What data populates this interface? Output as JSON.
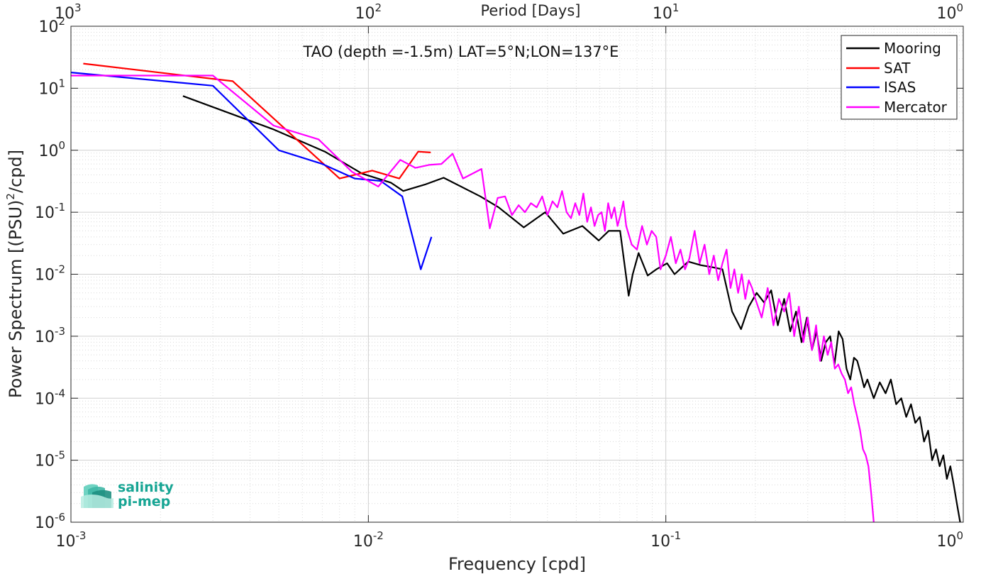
{
  "chart_data": {
    "type": "line",
    "annotation": "TAO (depth =-1.5m) LAT=5°N;LON=137°E",
    "xlabel": "Frequency [cpd]",
    "ylabel": "Power Spectrum [(PSU)",
    "ylabel_sup": "2",
    "ylabel_tail": "/cpd]",
    "top_axis_label": "Period [Days]",
    "x_scale": "log",
    "y_scale": "log",
    "xlim": [
      0.001,
      1
    ],
    "ylim": [
      1e-06,
      100
    ],
    "grid": true,
    "legend_position": "top-right",
    "x_ticks": [
      "10",
      "10",
      "10",
      "10"
    ],
    "x_tick_exponents": [
      "-3",
      "-2",
      "-1",
      "0"
    ],
    "y_ticks": [
      "10",
      "10",
      "10",
      "10",
      "10",
      "10",
      "10",
      "10",
      "10"
    ],
    "y_tick_exponents": [
      "2",
      "1",
      "0",
      "-1",
      "-2",
      "-3",
      "-4",
      "-5",
      "-6"
    ],
    "top_ticks": [
      "10",
      "10",
      "10",
      "10"
    ],
    "top_tick_exponents": [
      "3",
      "2",
      "1",
      "0"
    ],
    "series": [
      {
        "name": "Mooring",
        "color": "#000000",
        "x": [
          0.00238,
          0.00476,
          0.00714,
          0.00952,
          0.0119,
          0.0131,
          0.0155,
          0.0179,
          0.0238,
          0.0274,
          0.0333,
          0.0393,
          0.0452,
          0.0524,
          0.0595,
          0.0643,
          0.0702,
          0.075,
          0.0774,
          0.081,
          0.0869,
          0.0929,
          0.101,
          0.107,
          0.119,
          0.131,
          0.143,
          0.155,
          0.167,
          0.179,
          0.19,
          0.202,
          0.214,
          0.226,
          0.238,
          0.25,
          0.262,
          0.274,
          0.286,
          0.298,
          0.31,
          0.321,
          0.333,
          0.345,
          0.357,
          0.369,
          0.381,
          0.393,
          0.405,
          0.417,
          0.429,
          0.44,
          0.452,
          0.464,
          0.476,
          0.5,
          0.524,
          0.548,
          0.571,
          0.595,
          0.619,
          0.643,
          0.667,
          0.69,
          0.714,
          0.738,
          0.762,
          0.786,
          0.81,
          0.833,
          0.857,
          0.881,
          0.905,
          0.929,
          0.952,
          0.976
        ],
        "y": [
          7.5,
          2.2,
          0.95,
          0.42,
          0.3,
          0.22,
          0.28,
          0.36,
          0.18,
          0.12,
          0.057,
          0.1,
          0.045,
          0.06,
          0.035,
          0.05,
          0.05,
          0.0045,
          0.01,
          0.022,
          0.0095,
          0.012,
          0.015,
          0.01,
          0.016,
          0.014,
          0.013,
          0.012,
          0.0025,
          0.0013,
          0.003,
          0.005,
          0.0035,
          0.0055,
          0.0015,
          0.004,
          0.0012,
          0.0025,
          0.0008,
          0.002,
          0.0006,
          0.0012,
          0.0004,
          0.0008,
          0.001,
          0.00035,
          0.0012,
          0.0009,
          0.0003,
          0.0002,
          0.00045,
          0.0004,
          0.00025,
          0.00015,
          0.0002,
          0.0001,
          0.00018,
          0.00012,
          0.0002,
          8e-05,
          0.0001,
          5e-05,
          8e-05,
          4e-05,
          5e-05,
          2e-05,
          3e-05,
          1e-05,
          1.5e-05,
          8e-06,
          1.2e-05,
          5e-06,
          8e-06,
          4e-06,
          2e-06,
          1e-06
        ]
      },
      {
        "name": "SAT",
        "color": "#ff0000",
        "x": [
          0.0011,
          0.0035,
          0.008,
          0.0103,
          0.0127,
          0.0147,
          0.0162
        ],
        "y": [
          25,
          13,
          0.35,
          0.47,
          0.35,
          0.95,
          0.92
        ]
      },
      {
        "name": "ISAS",
        "color": "#0000ff",
        "x": [
          0.001,
          0.003,
          0.005,
          0.007,
          0.009,
          0.011,
          0.013,
          0.015,
          0.0163
        ],
        "y": [
          18,
          11,
          1.0,
          0.6,
          0.35,
          0.32,
          0.18,
          0.012,
          0.04
        ]
      },
      {
        "name": "Mercator",
        "color": "#ff00ff",
        "x": [
          0.001,
          0.003,
          0.0048,
          0.0068,
          0.0088,
          0.0108,
          0.0128,
          0.0144,
          0.016,
          0.0176,
          0.0192,
          0.0208,
          0.024,
          0.0256,
          0.0272,
          0.0288,
          0.0304,
          0.032,
          0.0336,
          0.0352,
          0.0368,
          0.0384,
          0.04,
          0.0416,
          0.0432,
          0.0448,
          0.0464,
          0.048,
          0.0496,
          0.0512,
          0.0528,
          0.0544,
          0.056,
          0.0576,
          0.0592,
          0.0608,
          0.0624,
          0.064,
          0.0656,
          0.0672,
          0.0688,
          0.0704,
          0.072,
          0.0736,
          0.0768,
          0.08,
          0.0832,
          0.0864,
          0.0896,
          0.0928,
          0.096,
          0.1,
          0.104,
          0.108,
          0.112,
          0.116,
          0.12,
          0.125,
          0.13,
          0.135,
          0.14,
          0.145,
          0.15,
          0.155,
          0.16,
          0.165,
          0.17,
          0.175,
          0.18,
          0.185,
          0.19,
          0.195,
          0.2,
          0.21,
          0.22,
          0.23,
          0.24,
          0.25,
          0.26,
          0.27,
          0.28,
          0.29,
          0.3,
          0.31,
          0.32,
          0.33,
          0.34,
          0.35,
          0.36,
          0.37,
          0.38,
          0.39,
          0.4,
          0.41,
          0.42,
          0.43,
          0.44,
          0.45,
          0.46,
          0.47,
          0.48,
          0.49,
          0.5
        ],
        "y": [
          16,
          16,
          2.5,
          1.5,
          0.45,
          0.26,
          0.7,
          0.52,
          0.58,
          0.6,
          0.88,
          0.35,
          0.5,
          0.055,
          0.17,
          0.18,
          0.09,
          0.13,
          0.1,
          0.14,
          0.12,
          0.18,
          0.09,
          0.15,
          0.12,
          0.22,
          0.1,
          0.08,
          0.14,
          0.09,
          0.2,
          0.07,
          0.12,
          0.06,
          0.09,
          0.1,
          0.05,
          0.14,
          0.08,
          0.12,
          0.06,
          0.09,
          0.15,
          0.06,
          0.03,
          0.025,
          0.06,
          0.03,
          0.05,
          0.04,
          0.012,
          0.02,
          0.04,
          0.015,
          0.025,
          0.012,
          0.018,
          0.05,
          0.015,
          0.03,
          0.01,
          0.02,
          0.008,
          0.015,
          0.025,
          0.006,
          0.012,
          0.005,
          0.01,
          0.004,
          0.008,
          0.006,
          0.004,
          0.002,
          0.006,
          0.0015,
          0.004,
          0.0025,
          0.005,
          0.001,
          0.003,
          0.0008,
          0.002,
          0.0006,
          0.0015,
          0.0004,
          0.001,
          0.0005,
          0.0008,
          0.0003,
          0.00035,
          0.00025,
          0.0002,
          0.00012,
          0.00015,
          8e-05,
          5e-05,
          3e-05,
          1.5e-05,
          1.2e-05,
          8e-06,
          3e-06,
          1e-06
        ]
      }
    ],
    "logo": {
      "line1": "salinity",
      "line2": "pi-mep",
      "color": "#17a594"
    }
  }
}
